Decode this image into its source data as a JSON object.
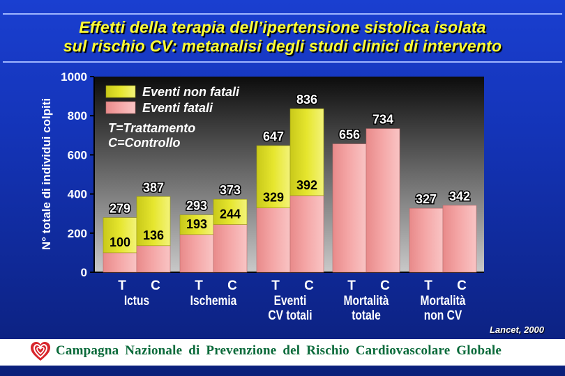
{
  "title_lines": [
    "Effetti della terapia dell’ipertensione sistolica isolata",
    "sul rischio CV: metanalisi degli studi clinici di intervento"
  ],
  "citation": "Lancet, 2000",
  "footer": {
    "text": "Campagna Nazionale di Prevenzione del Rischio Cardiovascolare Globale"
  },
  "colors": {
    "nonfatal": "#e6e62e",
    "fatal": "#f4a5a5",
    "label_text": "#ffffff",
    "accent_title": "#ffff33"
  },
  "chart_data": {
    "type": "bar",
    "stacked": true,
    "ylabel": "N° totale di individui colpiti",
    "ylim": [
      0,
      1000
    ],
    "yticks": [
      0,
      200,
      400,
      600,
      800,
      1000
    ],
    "legend": {
      "items": [
        "Eventi non fatali",
        "Eventi fatali"
      ],
      "notes": [
        "T=Trattamento",
        "C=Controllo"
      ],
      "position": "top-left"
    },
    "groups": [
      {
        "label_lines": [
          "Ictus"
        ],
        "bars": [
          {
            "label": "T",
            "total": 279,
            "fatal": 100,
            "nonfatal": 179,
            "total_label": "279",
            "fatal_label": "100"
          },
          {
            "label": "C",
            "total": 387,
            "fatal": 136,
            "nonfatal": 251,
            "total_label": "387",
            "fatal_label": "136"
          }
        ]
      },
      {
        "label_lines": [
          "Ischemia"
        ],
        "bars": [
          {
            "label": "T",
            "total": 293,
            "fatal": 193,
            "nonfatal": 100,
            "total_label": "293",
            "fatal_label": "193"
          },
          {
            "label": "C",
            "total": 373,
            "fatal": 244,
            "nonfatal": 129,
            "total_label": "373",
            "fatal_label": "244"
          }
        ]
      },
      {
        "label_lines": [
          "Eventi",
          "CV totali"
        ],
        "bars": [
          {
            "label": "T",
            "total": 647,
            "fatal": 329,
            "nonfatal": 318,
            "total_label": "647",
            "fatal_label": "329"
          },
          {
            "label": "C",
            "total": 836,
            "fatal": 392,
            "nonfatal": 444,
            "total_label": "836",
            "fatal_label": "392"
          }
        ]
      },
      {
        "label_lines": [
          "Mortalità",
          "totale"
        ],
        "bars": [
          {
            "label": "T",
            "total": 656,
            "fatal": 656,
            "nonfatal": 0,
            "total_label": "656",
            "fatal_label": ""
          },
          {
            "label": "C",
            "total": 734,
            "fatal": 734,
            "nonfatal": 0,
            "total_label": "734",
            "fatal_label": ""
          }
        ]
      },
      {
        "label_lines": [
          "Mortalità",
          "non CV"
        ],
        "bars": [
          {
            "label": "T",
            "total": 327,
            "fatal": 327,
            "nonfatal": 0,
            "total_label": "327",
            "fatal_label": ""
          },
          {
            "label": "C",
            "total": 342,
            "fatal": 342,
            "nonfatal": 0,
            "total_label": "342",
            "fatal_label": ""
          }
        ]
      }
    ]
  }
}
